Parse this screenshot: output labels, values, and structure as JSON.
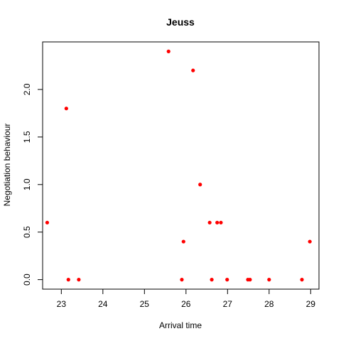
{
  "chart_data": {
    "type": "scatter",
    "title": "Jeuss",
    "xlabel": "Arrival time",
    "ylabel": "Negotiation behaviour",
    "xlim": [
      22.55,
      29.2
    ],
    "ylim": [
      -0.1,
      2.5
    ],
    "x_ticks": [
      23,
      24,
      25,
      26,
      27,
      28,
      29
    ],
    "x_tick_labels": [
      "23",
      "24",
      "25",
      "26",
      "27",
      "28",
      "29"
    ],
    "y_ticks": [
      0.0,
      0.5,
      1.0,
      1.5,
      2.0
    ],
    "y_tick_labels": [
      "0.0",
      "0.5",
      "1.0",
      "1.5",
      "2.0"
    ],
    "grid": false,
    "legend": "none",
    "point_color": "#ff0000",
    "points": [
      {
        "x": 22.66,
        "y": 0.6
      },
      {
        "x": 23.12,
        "y": 1.8
      },
      {
        "x": 23.17,
        "y": 0.0
      },
      {
        "x": 23.42,
        "y": 0.0
      },
      {
        "x": 25.58,
        "y": 2.4
      },
      {
        "x": 25.9,
        "y": 0.0
      },
      {
        "x": 25.94,
        "y": 0.4
      },
      {
        "x": 26.17,
        "y": 2.2
      },
      {
        "x": 26.34,
        "y": 1.0
      },
      {
        "x": 26.57,
        "y": 0.6
      },
      {
        "x": 26.62,
        "y": 0.0
      },
      {
        "x": 26.75,
        "y": 0.6
      },
      {
        "x": 26.84,
        "y": 0.6
      },
      {
        "x": 26.99,
        "y": 0.0
      },
      {
        "x": 27.49,
        "y": 0.0
      },
      {
        "x": 27.54,
        "y": 0.0
      },
      {
        "x": 28.0,
        "y": 0.0
      },
      {
        "x": 28.79,
        "y": 0.0
      },
      {
        "x": 28.98,
        "y": 0.4
      }
    ]
  }
}
